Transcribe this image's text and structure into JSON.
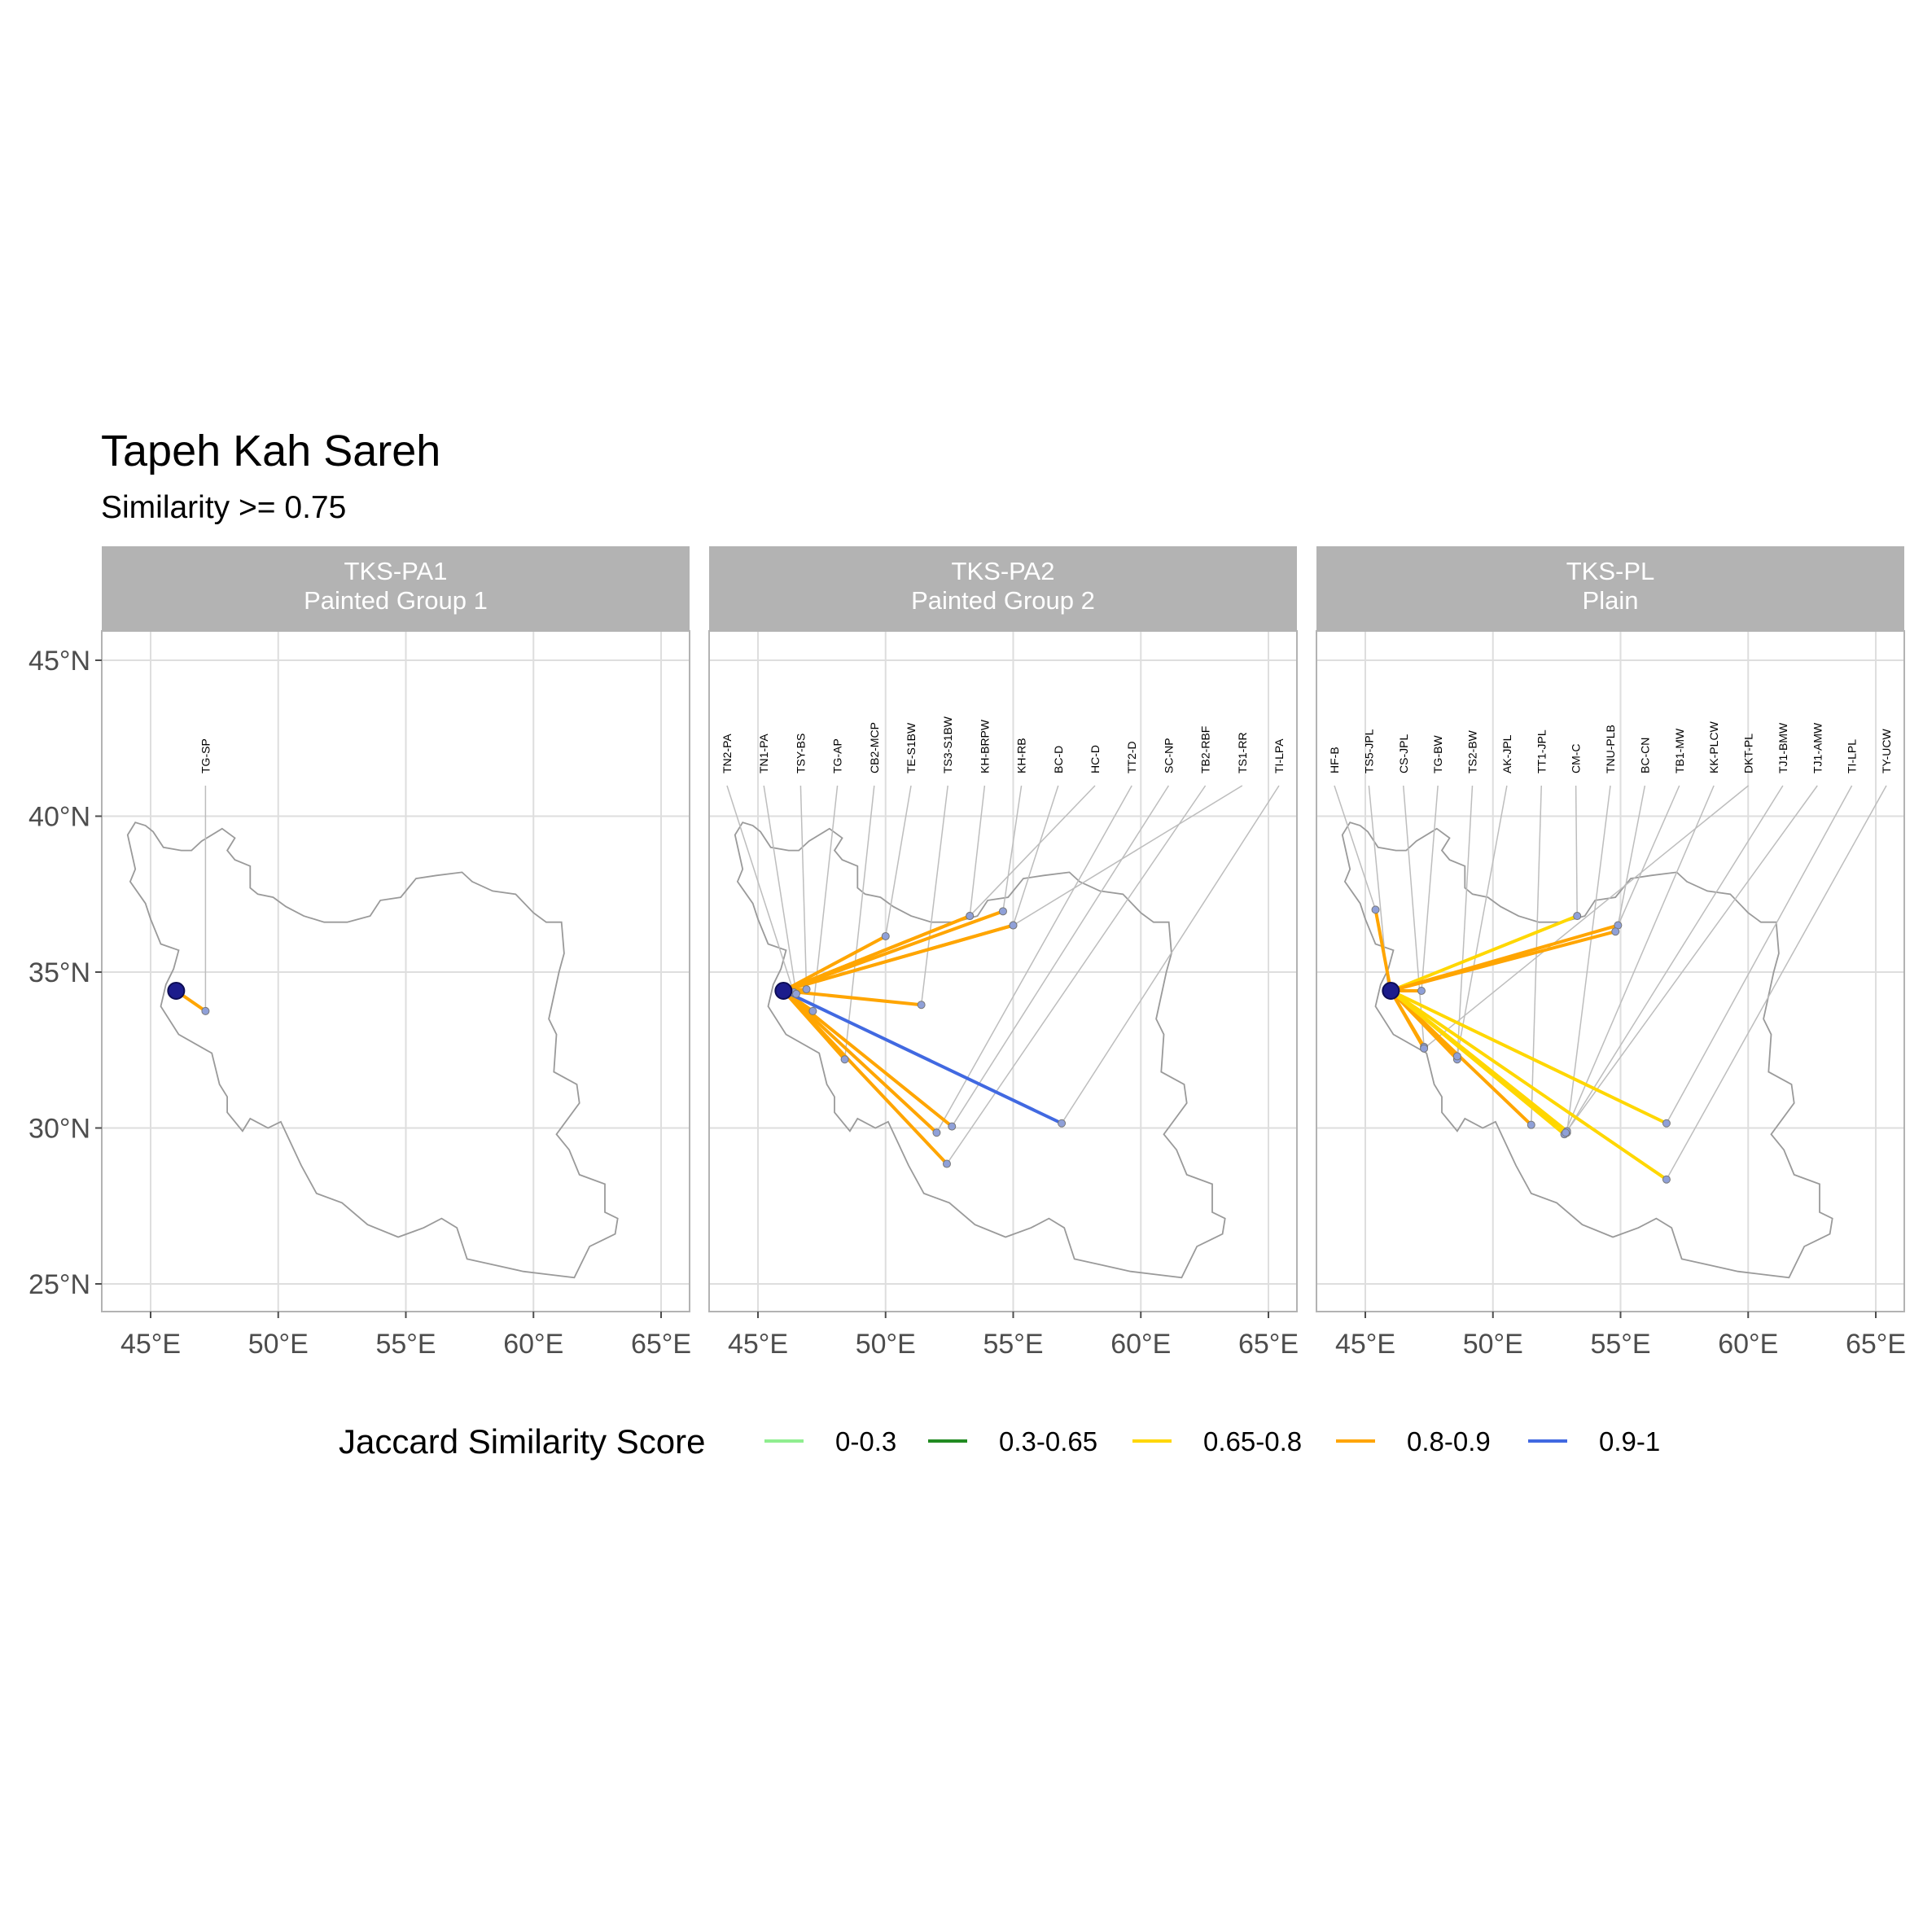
{
  "chart_data": {
    "type": "map",
    "title": "Tapeh Kah Sareh",
    "subtitle": "Similarity >= 0.75",
    "x_ticks": [
      "45°E",
      "50°E",
      "55°E",
      "60°E",
      "65°E"
    ],
    "y_ticks": [
      "45°N",
      "40°N",
      "35°N",
      "30°N",
      "25°N"
    ],
    "xlim": [
      43,
      66
    ],
    "ylim": [
      24,
      47
    ],
    "grid": true,
    "legend_position": "bottom",
    "origin": {
      "lon": 46.0,
      "lat": 34.4
    },
    "legend": {
      "title": "Jaccard Similarity Score",
      "items": [
        {
          "label": "0-0.3",
          "color": "#90EE90"
        },
        {
          "label": "0.3-0.65",
          "color": "#228B22"
        },
        {
          "label": "0.65-0.8",
          "color": "#FFD700"
        },
        {
          "label": "0.8-0.9",
          "color": "#FFA500"
        },
        {
          "label": "0.9-1",
          "color": "#4169E1"
        }
      ]
    },
    "panels": [
      {
        "strip": [
          "TKS-PA1",
          "Painted Group 1"
        ],
        "connections": [
          {
            "label": "TG-SP",
            "lon": 47.15,
            "lat": 33.75,
            "score_range": "0.8-0.9"
          }
        ]
      },
      {
        "strip": [
          "TKS-PA2",
          "Painted Group 2"
        ],
        "connections": [
          {
            "label": "TN2-PA",
            "lon": 46.4,
            "lat": 34.35,
            "score_range": "0.8-0.9"
          },
          {
            "label": "TN1-PA",
            "lon": 46.5,
            "lat": 34.3,
            "score_range": "0.8-0.9"
          },
          {
            "label": "TSY-BS",
            "lon": 46.9,
            "lat": 34.45,
            "score_range": "0.8-0.9"
          },
          {
            "label": "TG-AP",
            "lon": 47.15,
            "lat": 33.75,
            "score_range": "0.8-0.9"
          },
          {
            "label": "CB2-MCP",
            "lon": 48.4,
            "lat": 32.2,
            "score_range": "0.8-0.9"
          },
          {
            "label": "TE-S1BW",
            "lon": 50.0,
            "lat": 36.15,
            "score_range": "0.8-0.9"
          },
          {
            "label": "TS3-S1BW",
            "lon": 51.4,
            "lat": 33.95,
            "score_range": "0.8-0.9"
          },
          {
            "label": "KH-BRPW",
            "lon": 53.3,
            "lat": 36.8,
            "score_range": "0.8-0.9"
          },
          {
            "label": "KH-RB",
            "lon": 54.6,
            "lat": 36.95,
            "score_range": "0.8-0.9"
          },
          {
            "label": "BC-D",
            "lon": 55.0,
            "lat": 36.5,
            "score_range": "0.8-0.9"
          },
          {
            "label": "HC-D",
            "lon": 53.3,
            "lat": 36.8,
            "score_range": "0.8-0.9"
          },
          {
            "label": "TT2-D",
            "lon": 52.0,
            "lat": 29.85,
            "score_range": "0.8-0.9"
          },
          {
            "label": "SC-NP",
            "lon": 52.6,
            "lat": 30.05,
            "score_range": "0.8-0.9"
          },
          {
            "label": "TB2-RBF",
            "lon": 52.4,
            "lat": 28.85,
            "score_range": "0.8-0.9"
          },
          {
            "label": "TS1-RR",
            "lon": 55.0,
            "lat": 36.5,
            "score_range": "0.8-0.9"
          },
          {
            "label": "TI-LPA",
            "lon": 56.9,
            "lat": 30.15,
            "score_range": "0.9-1"
          }
        ]
      },
      {
        "strip": [
          "TKS-PL",
          "Plain"
        ],
        "connections": [
          {
            "label": "HF-B",
            "lon": 45.4,
            "lat": 37.0,
            "score_range": "0.8-0.9"
          },
          {
            "label": "TS5-JPL",
            "lon": 45.9,
            "lat": 34.4,
            "score_range": "0.8-0.9"
          },
          {
            "label": "CS-JPL",
            "lon": 47.3,
            "lat": 32.6,
            "score_range": "0.8-0.9"
          },
          {
            "label": "TG-BW",
            "lon": 47.2,
            "lat": 34.4,
            "score_range": "0.8-0.9"
          },
          {
            "label": "TS2-BW",
            "lon": 48.6,
            "lat": 32.2,
            "score_range": "0.8-0.9"
          },
          {
            "label": "AK-JPL",
            "lon": 48.6,
            "lat": 32.3,
            "score_range": "0.8-0.9"
          },
          {
            "label": "TT1-JPL",
            "lon": 51.5,
            "lat": 30.1,
            "score_range": "0.8-0.9"
          },
          {
            "label": "CM-C",
            "lon": 53.3,
            "lat": 36.8,
            "score_range": "0.65-0.8"
          },
          {
            "label": "TNU-PLB",
            "lon": 52.9,
            "lat": 29.85,
            "score_range": "0.65-0.8"
          },
          {
            "label": "BC-CN",
            "lon": 54.9,
            "lat": 36.5,
            "score_range": "0.8-0.9"
          },
          {
            "label": "TB1-MW",
            "lon": 54.8,
            "lat": 36.3,
            "score_range": "0.8-0.9"
          },
          {
            "label": "KK-PLCW",
            "lon": 52.8,
            "lat": 29.8,
            "score_range": "0.65-0.8"
          },
          {
            "label": "DKT-PL",
            "lon": 47.3,
            "lat": 32.55,
            "score_range": "0.8-0.9"
          },
          {
            "label": "TJ1-BMW",
            "lon": 52.9,
            "lat": 29.9,
            "score_range": "0.65-0.8"
          },
          {
            "label": "TJ1-AMW",
            "lon": 52.85,
            "lat": 29.85,
            "score_range": "0.65-0.8"
          },
          {
            "label": "TI-LPL",
            "lon": 56.8,
            "lat": 30.15,
            "score_range": "0.65-0.8"
          },
          {
            "label": "TY-UCW",
            "lon": 56.8,
            "lat": 28.35,
            "score_range": "0.65-0.8"
          }
        ]
      }
    ]
  }
}
